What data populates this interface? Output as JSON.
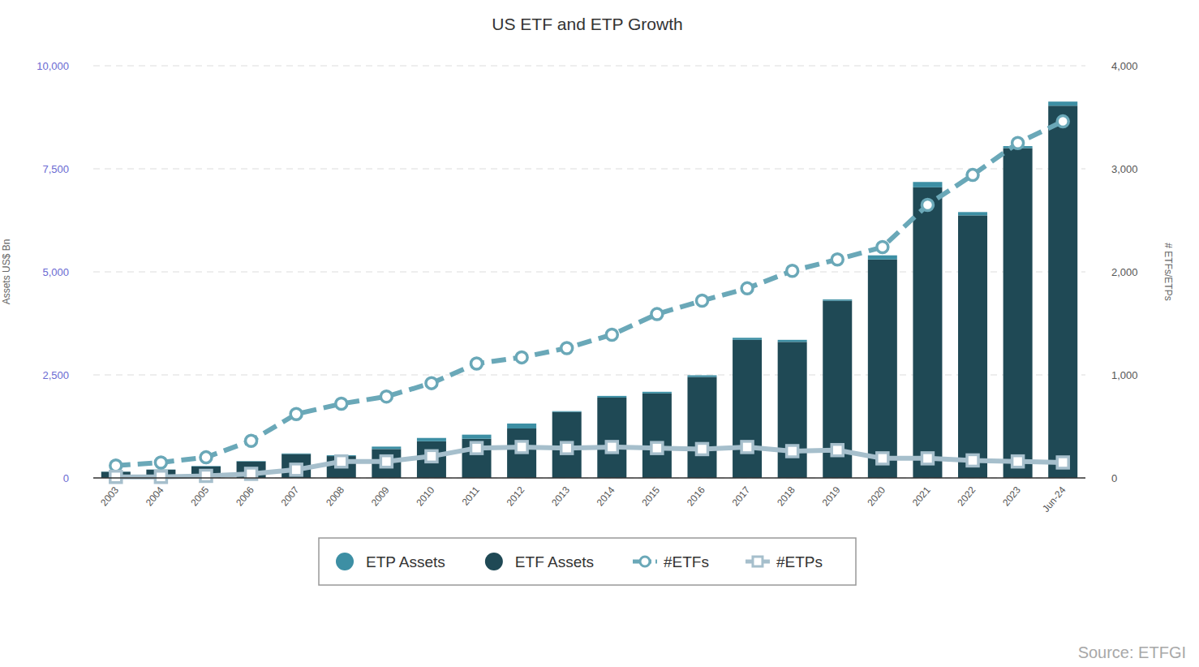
{
  "chart_data": {
    "type": "bar",
    "title": "US ETF and ETP Growth",
    "y_label": "Assets US$ Bn",
    "y2_label": "# ETFs/ETPs",
    "source": "Source: ETFGI",
    "categories": [
      "2003",
      "2004",
      "2005",
      "2006",
      "2007",
      "2008",
      "2009",
      "2010",
      "2011",
      "2012",
      "2013",
      "2014",
      "2015",
      "2016",
      "2017",
      "2018",
      "2019",
      "2020",
      "2021",
      "2022",
      "2023",
      "Jun-24"
    ],
    "stacked": true,
    "grid": true,
    "legend": "bottom",
    "ylim": [
      0,
      10000
    ],
    "yticks": [
      0,
      {
        "value": 2500,
        "label": "2,500"
      },
      {
        "value": 5000,
        "label": "5,000"
      },
      {
        "value": 7500,
        "label": "7,500"
      },
      {
        "value": 10000,
        "label": "10,000"
      }
    ],
    "y2lim": [
      0,
      4000
    ],
    "y2ticks": [
      0,
      {
        "value": 1000,
        "label": "1,000"
      },
      {
        "value": 2000,
        "label": "2,000"
      },
      {
        "value": 3000,
        "label": "3,000"
      },
      {
        "value": 4000,
        "label": "4,000"
      }
    ],
    "series": [
      {
        "name": "ETP Assets",
        "type": "bar",
        "color": "#3d8fa4",
        "values": [
          5,
          5,
          10,
          10,
          15,
          20,
          60,
          80,
          100,
          120,
          20,
          40,
          40,
          40,
          50,
          50,
          30,
          100,
          130,
          80,
          50,
          100
        ]
      },
      {
        "name": "ETF Assets",
        "type": "bar",
        "color": "#1f4955",
        "values": [
          150,
          200,
          280,
          400,
          580,
          530,
          700,
          890,
          950,
          1200,
          1600,
          1950,
          2050,
          2450,
          3350,
          3300,
          4300,
          5300,
          7050,
          6370,
          8000,
          9030
        ]
      },
      {
        "name": "#ETFs",
        "type": "line",
        "axis": "y2",
        "color": "#6aa8b8",
        "marker": "circle",
        "line_style": "dashed",
        "values": [
          120,
          150,
          200,
          360,
          620,
          720,
          790,
          920,
          1110,
          1170,
          1260,
          1390,
          1590,
          1720,
          1840,
          2010,
          2120,
          2240,
          2650,
          2940,
          3250,
          3460
        ]
      },
      {
        "name": "#ETPs",
        "type": "line",
        "axis": "y2",
        "color": "#a6bfcc",
        "marker": "square",
        "line_style": "solid",
        "values": [
          10,
          10,
          20,
          40,
          80,
          160,
          160,
          210,
          290,
          300,
          290,
          300,
          290,
          280,
          300,
          260,
          270,
          190,
          190,
          170,
          160,
          150
        ]
      }
    ]
  }
}
